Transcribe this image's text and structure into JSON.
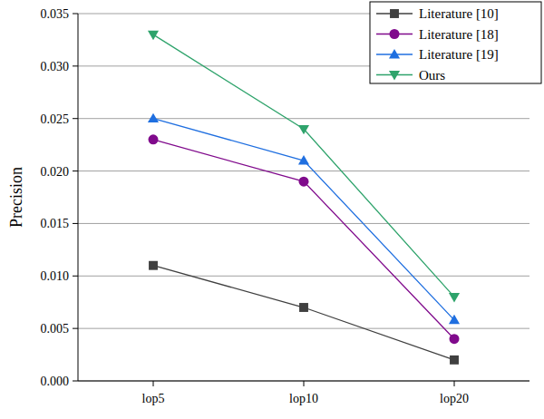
{
  "chart_data": {
    "type": "line",
    "y_label": "Precision",
    "categories": [
      "lop5",
      "lop10",
      "lop20"
    ],
    "series": [
      {
        "name": "Literature [10]",
        "color": "#404040",
        "marker": "square",
        "values": [
          0.011,
          0.007,
          0.002
        ]
      },
      {
        "name": "Literature [18]",
        "color": "#800a8c",
        "marker": "circle",
        "values": [
          0.023,
          0.019,
          0.004
        ]
      },
      {
        "name": "Literature [19]",
        "color": "#1f6fe0",
        "marker": "triangle",
        "values": [
          0.025,
          0.021,
          0.0058
        ]
      },
      {
        "name": "Ours",
        "color": "#2ea36b",
        "marker": "triangle-down",
        "values": [
          0.033,
          0.024,
          0.008
        ]
      }
    ],
    "ylim": [
      0,
      0.035
    ],
    "yticks": [
      {
        "value": 0,
        "label": "0.000"
      },
      {
        "value": 0.005,
        "label": "0.005"
      },
      {
        "value": 0.01,
        "label": "0.010"
      },
      {
        "value": 0.015,
        "label": "0.015"
      },
      {
        "value": 0.02,
        "label": "0.020"
      },
      {
        "value": 0.025,
        "label": "0.025"
      },
      {
        "value": 0.03,
        "label": "0.030"
      },
      {
        "value": 0.035,
        "label": "0.035"
      }
    ],
    "grid": true,
    "legend": "upper right"
  }
}
